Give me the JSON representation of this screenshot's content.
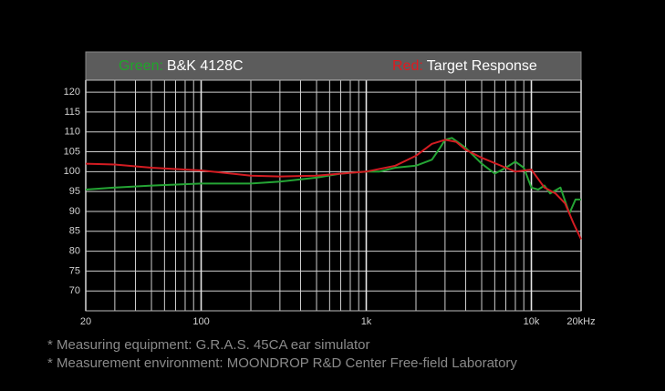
{
  "chart_data": {
    "type": "line",
    "legend": [
      {
        "prefix": "Green:",
        "prefix_color": "#1fa52a",
        "text": "B&K 4128C"
      },
      {
        "prefix": "Red:",
        "prefix_color": "#e0191f",
        "text": "Target Response"
      }
    ],
    "series": [
      {
        "name": "B&K 4128C",
        "color": "#25a535",
        "x": [
          20,
          30,
          50,
          100,
          200,
          300,
          500,
          700,
          1000,
          1200,
          1500,
          2000,
          2500,
          2800,
          3000,
          3300,
          4000,
          5000,
          6000,
          7000,
          8000,
          9000,
          10000,
          11000,
          12000,
          13000,
          15000,
          17000,
          18500,
          20000
        ],
        "values": [
          95.5,
          96,
          96.5,
          97,
          97,
          97.5,
          98.5,
          99.5,
          100,
          100,
          101,
          101.5,
          103,
          106,
          108,
          108.5,
          106,
          102,
          99.5,
          101,
          102.5,
          101,
          96,
          95.5,
          96.5,
          94.5,
          96,
          89.5,
          93,
          93
        ]
      },
      {
        "name": "Target Response",
        "color": "#d41c22",
        "x": [
          20,
          30,
          50,
          100,
          200,
          300,
          500,
          700,
          1000,
          1500,
          2000,
          2500,
          3000,
          3500,
          4000,
          5000,
          7000,
          8000,
          10000,
          12000,
          14000,
          16000,
          18000,
          20000
        ],
        "values": [
          102,
          101.8,
          101,
          100.3,
          99,
          98.8,
          99,
          99.5,
          100,
          101.5,
          104,
          107,
          108,
          107.5,
          105.5,
          103.5,
          101,
          100,
          100.5,
          96,
          94.5,
          92,
          87,
          83
        ]
      }
    ],
    "xscale": "log",
    "xlim": [
      20,
      20000
    ],
    "xticks": [
      20,
      100,
      {
        "value": 1000,
        "label": "1k"
      },
      {
        "value": 10000,
        "label": "10k"
      },
      {
        "value": 20000,
        "label": "20kHz"
      }
    ],
    "xminor": [
      30,
      40,
      50,
      60,
      70,
      80,
      90,
      200,
      300,
      400,
      500,
      600,
      700,
      800,
      900,
      2000,
      3000,
      4000,
      5000,
      6000,
      7000,
      8000,
      9000
    ],
    "ylim": [
      65,
      123
    ],
    "yticks": [
      70,
      75,
      80,
      85,
      90,
      95,
      100,
      105,
      110,
      115,
      120
    ],
    "grid": true,
    "notes": [
      "* Measuring equipment: G.R.A.S. 45CA ear simulator",
      "* Measurement environment: MOONDROP R&D Center Free-field Laboratory"
    ]
  }
}
